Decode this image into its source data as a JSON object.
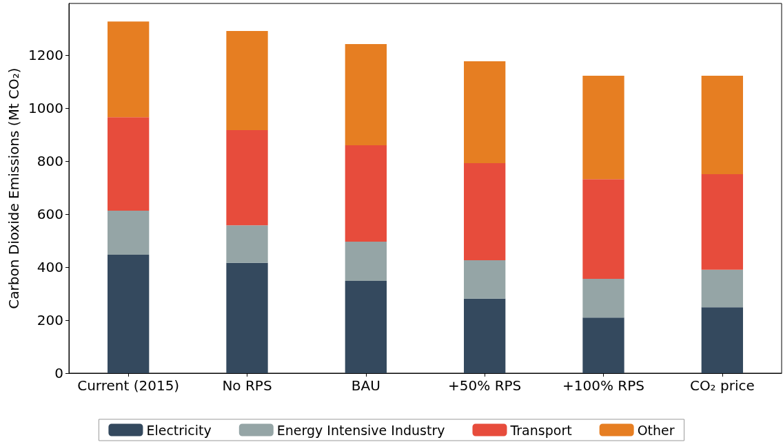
{
  "chart_data": {
    "type": "bar",
    "stacked": true,
    "ylabel": "Carbon Dioxide Emissions (Mt CO₂)",
    "categories": [
      "Current (2015)",
      "No RPS",
      "BAU",
      "+50% RPS",
      "+100% RPS",
      "CO₂ price"
    ],
    "series": [
      {
        "name": "Electricity",
        "color": "#34495e",
        "values": [
          447,
          416,
          348,
          281,
          210,
          249
        ]
      },
      {
        "name": "Energy Intensive Industry",
        "color": "#95a5a6",
        "values": [
          166,
          142,
          148,
          145,
          146,
          141
        ]
      },
      {
        "name": "Transport",
        "color": "#e74c3c",
        "values": [
          353,
          359,
          364,
          366,
          376,
          361
        ]
      },
      {
        "name": "Other",
        "color": "#e67e22",
        "values": [
          361,
          374,
          382,
          385,
          390,
          371
        ]
      }
    ],
    "ylim": [
      0,
      1395
    ],
    "yticks": [
      0,
      200,
      400,
      600,
      800,
      1000,
      1200
    ],
    "grid": false,
    "legend": "bottom"
  }
}
